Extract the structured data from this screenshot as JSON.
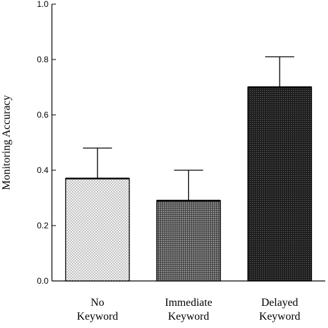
{
  "chart_data": {
    "type": "bar",
    "ylabel": "Monitoring Accuracy",
    "ylim": [
      0,
      1.0
    ],
    "yticks": [
      "0.0",
      "0.2",
      "0.4",
      "0.6",
      "0.8",
      "1.0"
    ],
    "categories": [
      [
        "No",
        "Keyword"
      ],
      [
        "Immediate",
        "Keyword"
      ],
      [
        "Delayed",
        "Keyword"
      ]
    ],
    "values": [
      0.37,
      0.29,
      0.7
    ],
    "error_upper": [
      0.48,
      0.4,
      0.81
    ],
    "fills": [
      "light-stipple",
      "medium-stipple",
      "dark-stipple"
    ],
    "grid": false,
    "legend": "none"
  }
}
